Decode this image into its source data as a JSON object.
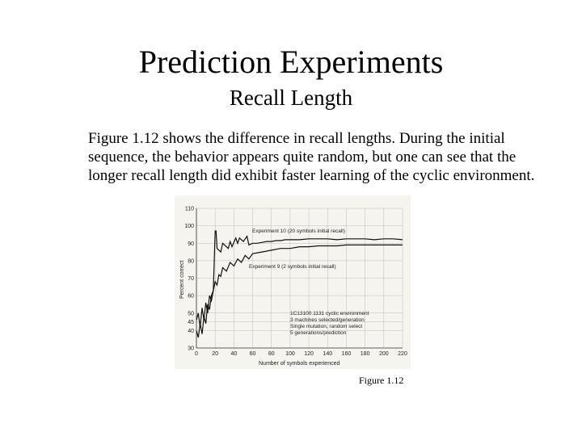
{
  "slide": {
    "title": "Prediction Experiments",
    "subtitle": "Recall Length",
    "body": "Figure 1.12 shows the difference in recall lengths. During the initial sequence, the behavior appears quite random, but one can see that the longer recall length did exhibit faster learning of the cyclic environment.",
    "caption": "Figure 1.12"
  },
  "chart_data": {
    "type": "line",
    "xlabel": "Number of symbols experienced",
    "ylabel": "Percent correct",
    "xlim": [
      0,
      220
    ],
    "ylim": [
      30,
      110
    ],
    "x_ticks": [
      0,
      20,
      40,
      60,
      80,
      100,
      120,
      140,
      160,
      180,
      200,
      220
    ],
    "y_ticks": [
      30,
      40,
      45,
      50,
      60,
      70,
      80,
      90,
      100,
      110
    ],
    "grid": true,
    "series": [
      {
        "name": "Experiment 10 (20 symbols initial recall)",
        "x": [
          0,
          2,
          4,
          6,
          8,
          10,
          12,
          14,
          16,
          18,
          20,
          21,
          22,
          26,
          28,
          34,
          36,
          38,
          42,
          44,
          46,
          50,
          54,
          56,
          60,
          65,
          70,
          75,
          80,
          85,
          90,
          95,
          100,
          110,
          120,
          130,
          140,
          150,
          160,
          170,
          180,
          190,
          200,
          210,
          220
        ],
        "y": [
          46,
          50,
          42,
          53,
          46,
          56,
          50,
          60,
          57,
          63,
          97,
          97,
          87,
          85,
          90,
          87,
          91,
          88,
          93,
          90,
          93,
          91,
          94,
          89,
          90,
          90,
          90.5,
          91,
          91,
          91.5,
          91.5,
          92,
          92,
          92,
          92.5,
          92.5,
          92.5,
          92,
          92.5,
          92.5,
          92.5,
          92,
          92.5,
          92.5,
          92
        ]
      },
      {
        "name": "Experiment 9 (2 symbols initial recall)",
        "x": [
          0,
          2,
          4,
          6,
          8,
          10,
          12,
          14,
          16,
          18,
          20,
          22,
          24,
          26,
          28,
          32,
          36,
          40,
          44,
          48,
          52,
          56,
          60,
          70,
          80,
          90,
          100,
          110,
          120,
          130,
          140,
          150,
          160,
          170,
          180,
          190,
          200,
          210,
          220
        ],
        "y": [
          40,
          36,
          44,
          38,
          48,
          44,
          55,
          52,
          60,
          63,
          68,
          66,
          72,
          71,
          76,
          74,
          79,
          77,
          81,
          79,
          83,
          81,
          84,
          85,
          86,
          87,
          87,
          88,
          88,
          88.5,
          88.5,
          88.5,
          89,
          89,
          89,
          89,
          89,
          89,
          89
        ]
      }
    ],
    "annotations": {
      "series1_label": "Experiment 10 (20 symbols initial recall)",
      "series2_label": "Experiment 9 (2 symbols initial recall)",
      "notes": [
        "1C13100.1131 cyclic environment",
        "3 machines selected/generation",
        "Single mutation, random select",
        "5 generations/prediction"
      ]
    }
  }
}
